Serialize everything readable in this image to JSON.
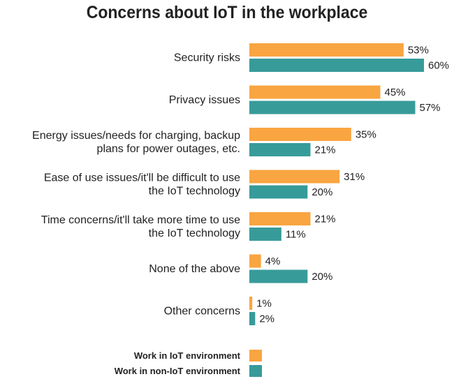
{
  "chart_data": {
    "type": "bar",
    "orientation": "horizontal",
    "title": "Concerns about IoT in the workplace",
    "categories": [
      [
        "Security risks"
      ],
      [
        "Privacy issues"
      ],
      [
        "Energy issues/needs for charging, backup",
        "plans for power outages, etc."
      ],
      [
        "Ease of use issues/it'll be difficult to use",
        "the IoT technology"
      ],
      [
        "Time concerns/it'll take more time to use",
        "the IoT technology"
      ],
      [
        "None of the above"
      ],
      [
        "Other concerns"
      ]
    ],
    "series": [
      {
        "name": "Work in IoT environment",
        "color": "#F9A541",
        "values": [
          53,
          45,
          35,
          31,
          21,
          4,
          1
        ],
        "labels": [
          "53%",
          "45%",
          "35%",
          "31%",
          "21%",
          "4%",
          "1%"
        ]
      },
      {
        "name": "Work in non-IoT environment",
        "color": "#379B9A",
        "values": [
          60,
          57,
          21,
          20,
          11,
          20,
          2
        ],
        "labels": [
          "60%",
          "57%",
          "21%",
          "20%",
          "11%",
          "20%",
          "2%"
        ]
      }
    ],
    "xlim": [
      0,
      60
    ],
    "grid": false,
    "legend": "bottom-left"
  }
}
